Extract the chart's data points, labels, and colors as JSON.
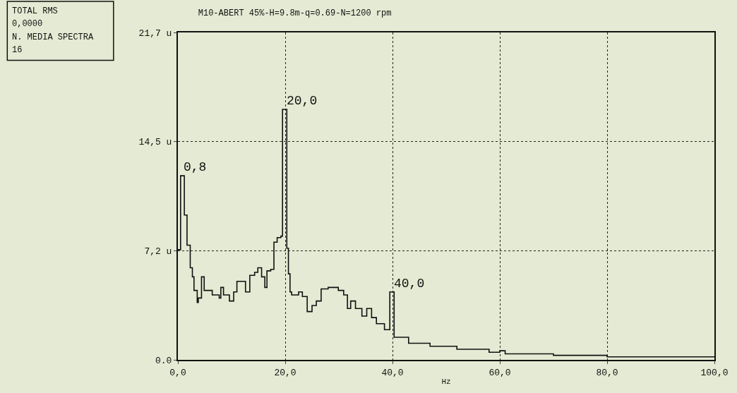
{
  "chart_data": {
    "type": "step",
    "title": "M10-ABERT 45%-H=9.8m-q=0.69-N=1200 rpm",
    "xlabel": "Hz",
    "x": [
      0,
      0.5,
      1.2,
      1.7,
      2.3,
      2.7,
      3.0,
      3.6,
      3.8,
      4.4,
      4.9,
      6.4,
      7.7,
      8.0,
      8.5,
      9.6,
      10.4,
      11.0,
      12.6,
      13.4,
      14.3,
      14.9,
      15.6,
      16.2,
      16.6,
      17.3,
      17.9,
      18.5,
      19.2,
      19.5,
      20.3,
      20.6,
      20.9,
      21.2,
      22.5,
      23.2,
      24.1,
      25.0,
      25.8,
      26.7,
      28.0,
      29.9,
      30.9,
      31.6,
      32.2,
      33.1,
      34.3,
      35.2,
      36.1,
      37.0,
      38.5,
      39.5,
      40.3,
      41.0,
      43.0,
      47.0,
      52.0,
      58.0,
      60.0,
      61.0,
      70.0,
      80.0,
      100.0
    ],
    "values": [
      7.3,
      12.2,
      9.6,
      7.6,
      6.1,
      5.5,
      4.6,
      3.8,
      4.1,
      5.5,
      4.6,
      4.3,
      4.1,
      4.8,
      4.3,
      3.9,
      4.5,
      5.2,
      4.5,
      5.6,
      5.8,
      6.1,
      5.5,
      4.8,
      5.9,
      6.0,
      7.8,
      8.1,
      8.2,
      16.6,
      7.4,
      5.7,
      4.5,
      4.3,
      4.5,
      4.2,
      3.2,
      3.6,
      3.9,
      4.7,
      4.8,
      4.6,
      4.3,
      3.4,
      3.9,
      3.4,
      2.9,
      3.4,
      2.8,
      2.4,
      2.0,
      4.5,
      1.5,
      1.5,
      1.1,
      0.9,
      0.7,
      0.5,
      0.6,
      0.4,
      0.3,
      0.2,
      0.2
    ],
    "color": "#111111",
    "line_style": "solid",
    "marker": "none",
    "xlim": [
      0,
      100
    ],
    "xticks": [
      {
        "value": 0,
        "label": "0,0"
      },
      {
        "value": 20,
        "label": "20,0"
      },
      {
        "value": 40,
        "label": "40,0"
      },
      {
        "value": 60,
        "label": "60,0"
      },
      {
        "value": 80,
        "label": "80,0"
      },
      {
        "value": 100,
        "label": "100,0"
      }
    ],
    "ylim": [
      0,
      21.7
    ],
    "yticks": [
      {
        "value": 0,
        "label": "0.0"
      },
      {
        "value": 7.23,
        "label": "7,2 u"
      },
      {
        "value": 14.47,
        "label": "14,5 u"
      },
      {
        "value": 21.7,
        "label": "21,7 u"
      }
    ],
    "grid": true,
    "legend": false,
    "annotations": [
      {
        "text": "0,8",
        "x": 0.8,
        "y": 12.2
      },
      {
        "text": "20,0",
        "x": 20.0,
        "y": 16.6
      },
      {
        "text": "40,0",
        "x": 40.0,
        "y": 4.5
      },
      "TOTAL RMS",
      "0,0000",
      "N. MEDIA SPECTRA",
      "16"
    ]
  }
}
